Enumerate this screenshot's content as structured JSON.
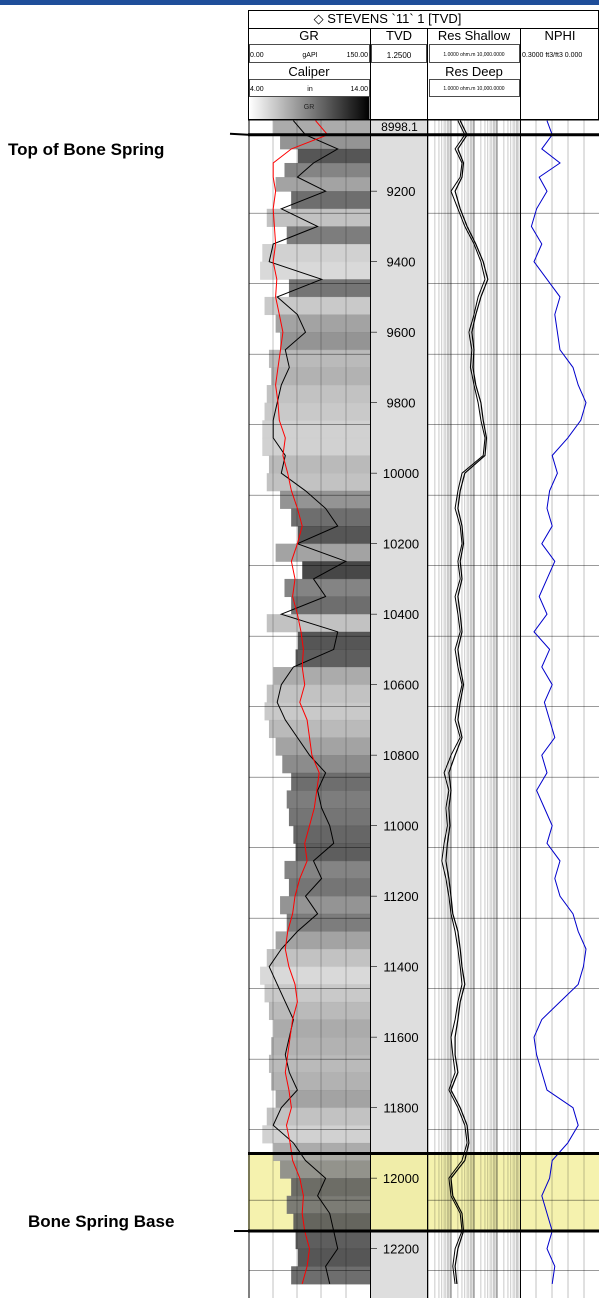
{
  "header": {
    "well_title": "STEVENS `11` 1 [TVD]",
    "gr": {
      "name": "GR",
      "min": "0.00",
      "unit": "gAPI",
      "max": "150.00"
    },
    "tvd": {
      "name": "TVD",
      "scale": "1.2500"
    },
    "res_shallow": {
      "name": "Res Shallow",
      "scale": "1.0000 ohm.m 10,000.0000"
    },
    "res_deep": {
      "name": "Res Deep",
      "scale": "1.0000 ohm.m 10,000.0000"
    },
    "nphi": {
      "name": "NPHI",
      "scale": "0.3000 ft3/ft3 0.000"
    },
    "caliper": {
      "name": "Caliper",
      "min": "4.00",
      "unit": "in",
      "max": "14.00"
    },
    "gr_shade_label": "GR"
  },
  "annotations": {
    "top": {
      "label": "Top of Bone Spring",
      "depth": 9040
    },
    "base": {
      "label": "Bone Spring Base",
      "depth": 12150
    },
    "highlight": {
      "from": 11930,
      "to": 12150,
      "color": "#f3f0a0"
    }
  },
  "colors": {
    "gr_curve": "#000000",
    "caliper_curve": "#ff0000",
    "nphi_curve": "#0000cc",
    "resistivity_curve": "#000000",
    "track_header_bar": "#1f4e9a"
  },
  "chart_data": {
    "type": "line",
    "title": "STEVENS `11` 1 [TVD]",
    "depth_axis": {
      "label": "TVD",
      "top_value": "8998.1",
      "range": [
        8998.1,
        12340
      ],
      "ticks": [
        9200,
        9400,
        9600,
        9800,
        10000,
        10200,
        10400,
        10600,
        10800,
        11000,
        11200,
        11400,
        11600,
        11800,
        12000,
        12200
      ]
    },
    "tracks": [
      {
        "name": "GR",
        "unit": "gAPI",
        "range": [
          0,
          150
        ]
      },
      {
        "name": "Caliper",
        "unit": "in",
        "range": [
          4,
          14
        ]
      },
      {
        "name": "Res Shallow",
        "unit": "ohm.m",
        "range": [
          1,
          10000
        ],
        "scale": "log"
      },
      {
        "name": "Res Deep",
        "unit": "ohm.m",
        "range": [
          1,
          10000
        ],
        "scale": "log"
      },
      {
        "name": "NPHI",
        "unit": "ft3/ft3",
        "range": [
          0.3,
          0.0
        ]
      }
    ],
    "depth": [
      9000,
      9040,
      9080,
      9120,
      9160,
      9200,
      9250,
      9300,
      9350,
      9400,
      9450,
      9500,
      9550,
      9600,
      9650,
      9700,
      9750,
      9800,
      9850,
      9900,
      9950,
      10000,
      10050,
      10100,
      10150,
      10200,
      10250,
      10300,
      10350,
      10400,
      10450,
      10500,
      10550,
      10600,
      10650,
      10700,
      10750,
      10800,
      10850,
      10900,
      10950,
      11000,
      11050,
      11100,
      11150,
      11200,
      11250,
      11300,
      11350,
      11400,
      11450,
      11500,
      11550,
      11600,
      11650,
      11700,
      11750,
      11800,
      11850,
      11900,
      11950,
      12000,
      12050,
      12100,
      12150,
      12200,
      12250,
      12300
    ],
    "series": [
      {
        "name": "GR",
        "values": [
          55,
          70,
          110,
          80,
          60,
          95,
          40,
          85,
          30,
          25,
          90,
          35,
          60,
          70,
          45,
          50,
          40,
          35,
          30,
          30,
          45,
          40,
          70,
          95,
          110,
          60,
          120,
          80,
          95,
          40,
          110,
          105,
          55,
          40,
          35,
          45,
          60,
          75,
          95,
          85,
          90,
          100,
          105,
          80,
          90,
          70,
          85,
          60,
          40,
          25,
          35,
          45,
          55,
          50,
          45,
          50,
          60,
          40,
          30,
          55,
          70,
          95,
          85,
          100,
          105,
          110,
          95,
          100
        ]
      },
      {
        "name": "Caliper",
        "values": [
          9.5,
          10.5,
          7.5,
          6.0,
          6.0,
          6.2,
          6.0,
          6.1,
          6.2,
          6.0,
          6.3,
          6.2,
          6.5,
          6.8,
          6.6,
          6.4,
          6.2,
          6.4,
          6.5,
          7.0,
          6.8,
          7.2,
          7.5,
          8.0,
          8.4,
          8.0,
          7.5,
          7.8,
          7.6,
          8.0,
          8.3,
          8.5,
          8.4,
          8.6,
          8.2,
          8.8,
          9.0,
          9.2,
          9.8,
          9.6,
          9.4,
          9.0,
          8.6,
          8.8,
          8.2,
          7.8,
          7.6,
          7.2,
          7.0,
          7.3,
          7.8,
          8.0,
          7.6,
          7.4,
          7.2,
          7.0,
          7.3,
          7.5,
          7.1,
          7.4,
          7.6,
          8.2,
          8.5,
          8.4,
          8.6,
          9.0,
          8.8,
          8.4
        ]
      },
      {
        "name": "Res Shallow",
        "values": [
          20,
          40,
          15,
          30,
          25,
          10,
          20,
          40,
          100,
          200,
          300,
          150,
          100,
          60,
          80,
          70,
          100,
          150,
          200,
          300,
          250,
          30,
          20,
          15,
          25,
          30,
          20,
          25,
          15,
          20,
          25,
          15,
          20,
          30,
          20,
          15,
          25,
          10,
          5,
          8,
          6,
          7,
          5,
          4,
          6,
          8,
          10,
          15,
          20,
          25,
          30,
          20,
          15,
          10,
          12,
          15,
          8,
          20,
          40,
          50,
          30,
          8,
          10,
          25,
          30,
          15,
          12,
          15
        ]
      },
      {
        "name": "Res Deep",
        "values": [
          25,
          50,
          20,
          35,
          30,
          15,
          25,
          50,
          120,
          250,
          400,
          200,
          120,
          80,
          100,
          90,
          120,
          200,
          250,
          350,
          300,
          40,
          25,
          20,
          30,
          35,
          25,
          30,
          20,
          25,
          30,
          20,
          25,
          35,
          25,
          20,
          30,
          15,
          8,
          10,
          8,
          9,
          7,
          6,
          8,
          10,
          12,
          20,
          25,
          30,
          40,
          25,
          20,
          15,
          15,
          20,
          10,
          25,
          50,
          60,
          40,
          10,
          12,
          30,
          35,
          20,
          15,
          18
        ]
      },
      {
        "name": "NPHI",
        "values": [
          0.2,
          0.18,
          0.22,
          0.15,
          0.23,
          0.2,
          0.24,
          0.26,
          0.22,
          0.25,
          0.2,
          0.15,
          0.17,
          0.16,
          0.15,
          0.1,
          0.08,
          0.05,
          0.07,
          0.12,
          0.18,
          0.16,
          0.19,
          0.2,
          0.18,
          0.22,
          0.17,
          0.2,
          0.23,
          0.2,
          0.25,
          0.19,
          0.22,
          0.18,
          0.21,
          0.19,
          0.17,
          0.22,
          0.2,
          0.24,
          0.21,
          0.18,
          0.2,
          0.15,
          0.17,
          0.15,
          0.1,
          0.08,
          0.05,
          0.06,
          0.08,
          0.15,
          0.22,
          0.25,
          0.24,
          0.22,
          0.2,
          0.1,
          0.08,
          0.12,
          0.18,
          0.19,
          0.22,
          0.2,
          0.18,
          0.2,
          0.17,
          0.18
        ]
      }
    ]
  }
}
